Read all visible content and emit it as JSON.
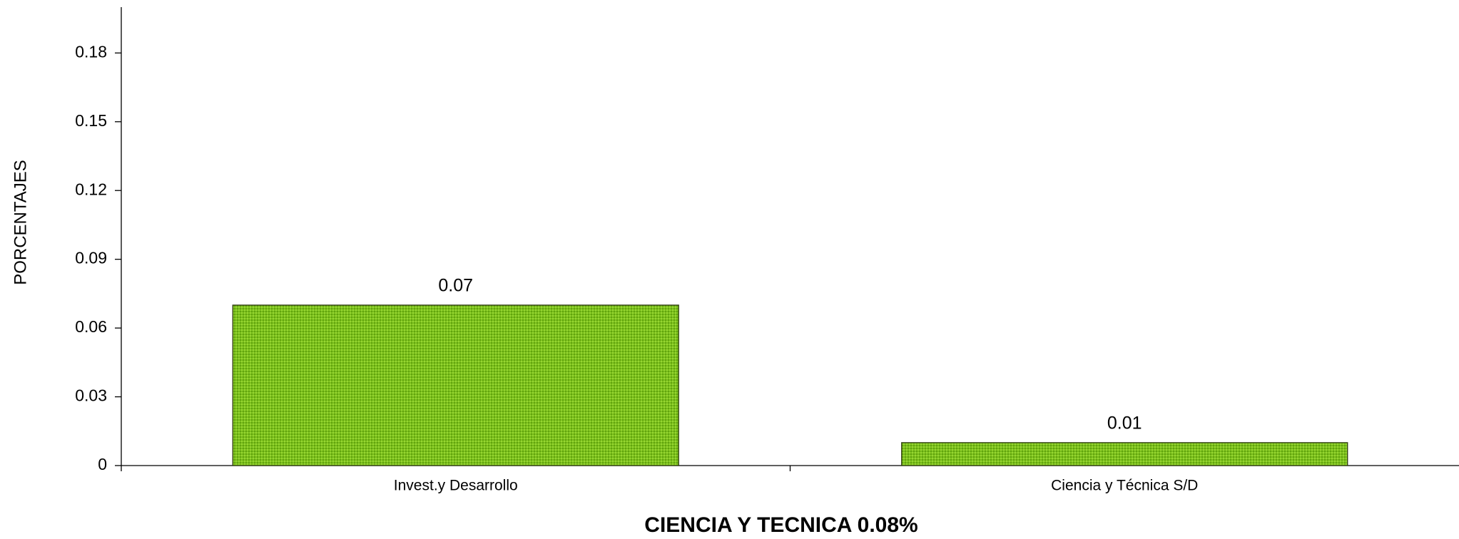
{
  "chart_data": {
    "type": "bar",
    "title": "CIENCIA Y TECNICA 0.08%",
    "y_label": "PORCENTAJES",
    "categories": [
      "Invest.y Desarrollo",
      "Ciencia y Técnica S/D"
    ],
    "values": [
      0.07,
      0.01
    ],
    "color": "#7cc21a",
    "ylim": [
      0,
      0.2
    ],
    "yticks": [
      0,
      0.03,
      0.06,
      0.09,
      0.12,
      0.15,
      0.18
    ],
    "grid": false
  }
}
